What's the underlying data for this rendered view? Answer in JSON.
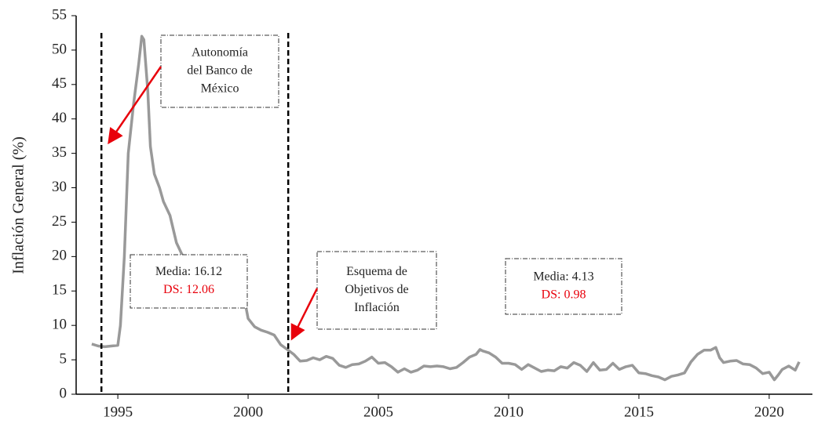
{
  "chart_data": {
    "type": "line",
    "ylabel": "Inflación General (%)",
    "xlim": [
      1993.4,
      2021.66
    ],
    "ylim": [
      0,
      55
    ],
    "xticks": [
      1995,
      2000,
      2005,
      2010,
      2015,
      2020
    ],
    "yticks": [
      0,
      5,
      10,
      15,
      20,
      25,
      30,
      35,
      40,
      45,
      50,
      55
    ],
    "grid": false,
    "reference_lines": [
      1994.37,
      2001.54
    ],
    "series": [
      {
        "name": "Inflación General",
        "color": "#999999",
        "x": [
          1994.0,
          1994.25,
          1994.5,
          1994.75,
          1995.0,
          1995.1,
          1995.25,
          1995.4,
          1995.6,
          1995.8,
          1995.92,
          1996.0,
          1996.15,
          1996.25,
          1996.4,
          1996.6,
          1996.75,
          1997.0,
          1997.25,
          1997.5,
          1997.75,
          1998.0,
          1998.5,
          1999.0,
          1999.5,
          1999.8,
          2000.0,
          2000.25,
          2000.5,
          2000.75,
          2001.0,
          2001.25,
          2001.5,
          2001.75,
          2002.0,
          2002.25,
          2002.5,
          2002.75,
          2003.0,
          2003.25,
          2003.5,
          2003.75,
          2004.0,
          2004.25,
          2004.5,
          2004.75,
          2005.0,
          2005.25,
          2005.5,
          2005.75,
          2006.0,
          2006.25,
          2006.5,
          2006.75,
          2007.0,
          2007.25,
          2007.5,
          2007.75,
          2008.0,
          2008.25,
          2008.5,
          2008.75,
          2008.9,
          2009.0,
          2009.25,
          2009.5,
          2009.75,
          2010.0,
          2010.25,
          2010.5,
          2010.75,
          2011.0,
          2011.25,
          2011.5,
          2011.75,
          2012.0,
          2012.25,
          2012.5,
          2012.75,
          2013.0,
          2013.25,
          2013.5,
          2013.75,
          2014.0,
          2014.25,
          2014.5,
          2014.75,
          2015.0,
          2015.25,
          2015.5,
          2015.75,
          2016.0,
          2016.25,
          2016.5,
          2016.75,
          2017.0,
          2017.25,
          2017.5,
          2017.75,
          2017.95,
          2018.1,
          2018.25,
          2018.5,
          2018.75,
          2019.0,
          2019.25,
          2019.5,
          2019.75,
          2020.0,
          2020.2,
          2020.35,
          2020.5,
          2020.75,
          2021.0,
          2021.15
        ],
        "values": [
          7.3,
          7.0,
          6.9,
          7.0,
          7.1,
          10,
          20,
          35,
          42,
          48,
          52,
          51.5,
          44,
          36,
          32,
          30,
          28,
          26,
          22,
          20,
          18,
          16,
          16,
          18.5,
          17,
          15,
          11,
          9.8,
          9.3,
          9.0,
          8.6,
          7.2,
          6.5,
          5.8,
          4.8,
          4.9,
          5.3,
          5.0,
          5.5,
          5.2,
          4.2,
          3.9,
          4.3,
          4.4,
          4.8,
          5.4,
          4.5,
          4.6,
          4.0,
          3.2,
          3.7,
          3.2,
          3.5,
          4.1,
          4.0,
          4.1,
          4.0,
          3.7,
          3.9,
          4.6,
          5.4,
          5.8,
          6.5,
          6.3,
          6.0,
          5.4,
          4.5,
          4.5,
          4.3,
          3.6,
          4.3,
          3.8,
          3.3,
          3.5,
          3.4,
          4.0,
          3.8,
          4.6,
          4.2,
          3.3,
          4.6,
          3.5,
          3.6,
          4.5,
          3.6,
          4.0,
          4.2,
          3.1,
          3.0,
          2.7,
          2.5,
          2.1,
          2.6,
          2.8,
          3.1,
          4.7,
          5.8,
          6.4,
          6.4,
          6.8,
          5.3,
          4.6,
          4.8,
          4.9,
          4.4,
          4.3,
          3.8,
          3.0,
          3.2,
          2.1,
          2.8,
          3.6,
          4.1,
          3.5,
          4.7
        ]
      }
    ],
    "annotations": [
      {
        "text": [
          "Autonomía",
          "del Banco de",
          "México"
        ]
      },
      {
        "text": [
          "Media: 16.12"
        ],
        "highlight": "DS: 12.06"
      },
      {
        "text": [
          "Esquema de",
          "Objetivos de",
          "Inflación"
        ]
      },
      {
        "text": [
          "Media: 4.13"
        ],
        "highlight": "DS: 0.98"
      }
    ]
  }
}
